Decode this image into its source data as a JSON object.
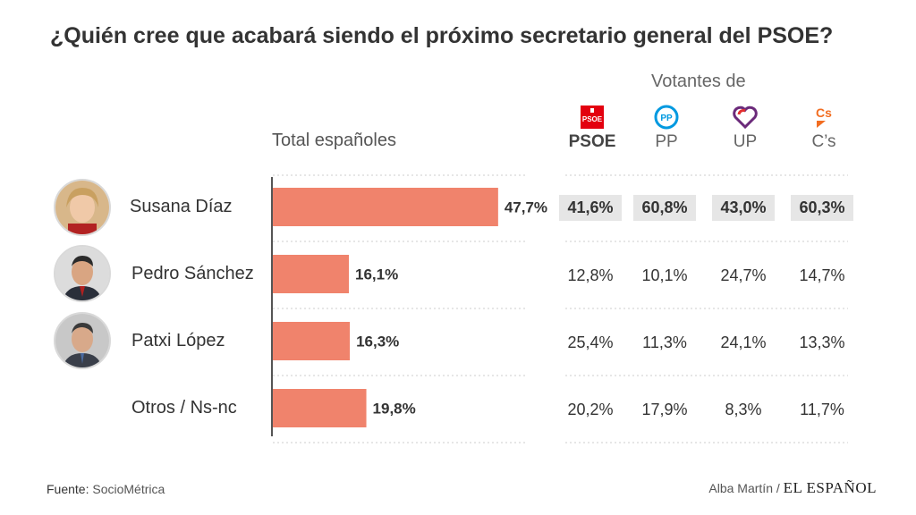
{
  "title": "¿Quién cree que acabará siendo el próximo secretario general del PSOE?",
  "votantes_label": "Votantes de",
  "total_label": "Total españoles",
  "parties": [
    {
      "name": "PSOE",
      "color": "#e3000f",
      "icon": "psoe-logo-icon"
    },
    {
      "name": "PP",
      "color": "#0099e0",
      "icon": "pp-logo-icon"
    },
    {
      "name": "UP",
      "color": "#6b2a7a",
      "icon": "up-heart-logo-icon"
    },
    {
      "name": "C’s",
      "color": "#f26d21",
      "icon": "cs-logo-icon"
    }
  ],
  "candidates": [
    {
      "name": "Susana Díaz",
      "total": "47,7%",
      "by_party": [
        "41,6%",
        "60,8%",
        "43,0%",
        "60,3%"
      ]
    },
    {
      "name": "Pedro Sánchez",
      "total": "16,1%",
      "by_party": [
        "12,8%",
        "10,1%",
        "24,7%",
        "14,7%"
      ]
    },
    {
      "name": "Patxi López",
      "total": "16,3%",
      "by_party": [
        "25,4%",
        "11,3%",
        "24,1%",
        "13,3%"
      ]
    },
    {
      "name": "Otros / Ns-nc",
      "total": "19,8%",
      "by_party": [
        "20,2%",
        "17,9%",
        "8,3%",
        "11,7%"
      ]
    }
  ],
  "chart_data": {
    "type": "bar",
    "orientation": "horizontal",
    "title": "¿Quién cree que acabará siendo el próximo secretario general del PSOE?",
    "series_label": "Total españoles",
    "categories": [
      "Susana Díaz",
      "Pedro Sánchez",
      "Patxi López",
      "Otros / Ns-nc"
    ],
    "values": [
      47.7,
      16.1,
      16.3,
      19.8
    ],
    "value_labels": [
      "47,7%",
      "16,1%",
      "16,3%",
      "19,8%"
    ],
    "unit": "%",
    "xlim": [
      0,
      100
    ],
    "bar_color": "#f0836c",
    "grid": true
  },
  "footer": {
    "source_label": "Fuente:",
    "source_value": "SocioMétrica",
    "author": "Alba Martín /",
    "brand": "EL ESPAÑOL"
  },
  "colors": {
    "bar": "#f0836c",
    "highlight": "#e6e6e6",
    "divider": "#cccccc"
  }
}
